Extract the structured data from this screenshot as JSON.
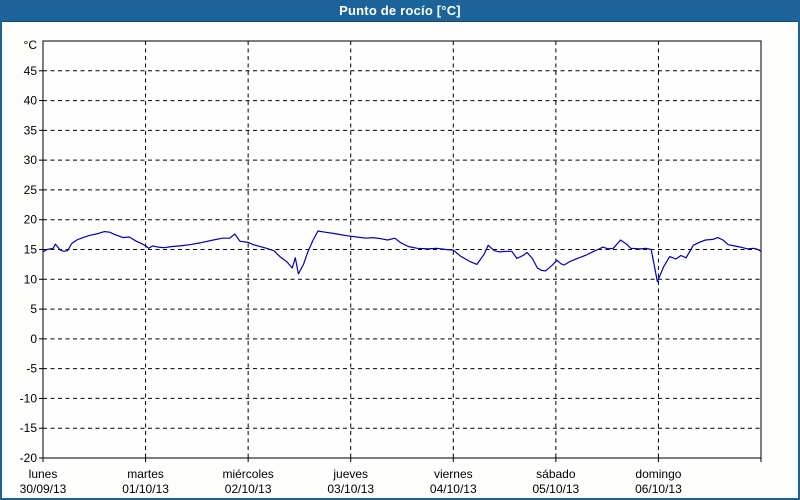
{
  "window": {
    "title": "Punto de rocío [°C]"
  },
  "colors": {
    "frame": "#1b6399",
    "titlebar_bg": "#1b6399",
    "title_text": "#ffffff",
    "plot_bg": "#fefefe",
    "axis": "#000000",
    "grid": "#000000",
    "tick_label": "#000000",
    "line": "#0000b8"
  },
  "chart_data": {
    "type": "line",
    "title": "Punto de rocío [°C]",
    "ylabel": "°C",
    "y_axis": {
      "min": -20,
      "max": 50,
      "tick_step": 5,
      "tick_min": -20,
      "tick_max": 45,
      "tick_labels": [
        "45",
        "40",
        "35",
        "30",
        "25",
        "20",
        "15",
        "10",
        "5",
        "0",
        "-5",
        "-10",
        "-15",
        "-20"
      ]
    },
    "x_axis": {
      "unit": "day",
      "range": [
        0,
        7
      ],
      "days": [
        {
          "name": "lunes",
          "date": "30/09/13"
        },
        {
          "name": "martes",
          "date": "01/10/13"
        },
        {
          "name": "miércoles",
          "date": "02/10/13"
        },
        {
          "name": "jueves",
          "date": "03/10/13"
        },
        {
          "name": "viernes",
          "date": "04/10/13"
        },
        {
          "name": "sábado",
          "date": "05/10/13"
        },
        {
          "name": "domingo",
          "date": "06/10/13"
        }
      ]
    },
    "grid": "dashed",
    "legend": "none",
    "series": [
      {
        "name": "Punto de rocío",
        "color": "#0000b8",
        "points": [
          [
            0,
            14.6
          ],
          [
            0.04,
            15
          ],
          [
            0.1,
            15.2
          ],
          [
            0.12,
            15.9
          ],
          [
            0.17,
            14.9
          ],
          [
            0.2,
            14.7
          ],
          [
            0.24,
            14.8
          ],
          [
            0.28,
            16
          ],
          [
            0.33,
            16.6
          ],
          [
            0.39,
            17
          ],
          [
            0.46,
            17.4
          ],
          [
            0.52,
            17.6
          ],
          [
            0.56,
            17.8
          ],
          [
            0.6,
            18
          ],
          [
            0.65,
            17.9
          ],
          [
            0.7,
            17.5
          ],
          [
            0.78,
            17
          ],
          [
            0.84,
            17.1
          ],
          [
            0.91,
            16.4
          ],
          [
            0.97,
            15.9
          ],
          [
            1,
            15.6
          ],
          [
            1.03,
            15.2
          ],
          [
            1.07,
            15.6
          ],
          [
            1.12,
            15.4
          ],
          [
            1.18,
            15.3
          ],
          [
            1.26,
            15.5
          ],
          [
            1.34,
            15.6
          ],
          [
            1.43,
            15.8
          ],
          [
            1.53,
            16.1
          ],
          [
            1.66,
            16.6
          ],
          [
            1.75,
            16.9
          ],
          [
            1.82,
            16.9
          ],
          [
            1.87,
            17.6
          ],
          [
            1.92,
            16.4
          ],
          [
            2,
            16.2
          ],
          [
            2.05,
            15.8
          ],
          [
            2.18,
            15.2
          ],
          [
            2.25,
            14.8
          ],
          [
            2.31,
            13.8
          ],
          [
            2.38,
            12.9
          ],
          [
            2.43,
            11.9
          ],
          [
            2.46,
            13.6
          ],
          [
            2.49,
            10.9
          ],
          [
            2.54,
            12.5
          ],
          [
            2.58,
            14.5
          ],
          [
            2.63,
            16.5
          ],
          [
            2.68,
            18.1
          ],
          [
            2.75,
            17.9
          ],
          [
            2.83,
            17.7
          ],
          [
            2.9,
            17.5
          ],
          [
            2.97,
            17.3
          ],
          [
            3.06,
            17.1
          ],
          [
            3.15,
            16.9
          ],
          [
            3.22,
            17
          ],
          [
            3.3,
            16.8
          ],
          [
            3.36,
            16.6
          ],
          [
            3.43,
            16.9
          ],
          [
            3.49,
            16.1
          ],
          [
            3.56,
            15.5
          ],
          [
            3.65,
            15.2
          ],
          [
            3.75,
            15.1
          ],
          [
            3.84,
            15.2
          ],
          [
            3.93,
            15
          ],
          [
            4,
            14.9
          ],
          [
            4.07,
            13.9
          ],
          [
            4.16,
            13
          ],
          [
            4.23,
            12.5
          ],
          [
            4.3,
            14.2
          ],
          [
            4.34,
            15.7
          ],
          [
            4.4,
            14.8
          ],
          [
            4.45,
            14.6
          ],
          [
            4.52,
            14.7
          ],
          [
            4.57,
            14.7
          ],
          [
            4.62,
            13.5
          ],
          [
            4.68,
            14
          ],
          [
            4.72,
            14.5
          ],
          [
            4.77,
            13.5
          ],
          [
            4.82,
            11.9
          ],
          [
            4.86,
            11.5
          ],
          [
            4.9,
            11.4
          ],
          [
            4.96,
            12.3
          ],
          [
            5.01,
            13.2
          ],
          [
            5.05,
            12.6
          ],
          [
            5.08,
            12.4
          ],
          [
            5.14,
            13
          ],
          [
            5.21,
            13.5
          ],
          [
            5.3,
            14.1
          ],
          [
            5.37,
            14.7
          ],
          [
            5.41,
            15
          ],
          [
            5.46,
            15.4
          ],
          [
            5.51,
            15.1
          ],
          [
            5.56,
            15.2
          ],
          [
            5.63,
            16.6
          ],
          [
            5.69,
            15.9
          ],
          [
            5.73,
            15.2
          ],
          [
            5.82,
            15.1
          ],
          [
            5.88,
            15.2
          ],
          [
            5.93,
            15
          ],
          [
            5.99,
            9.6
          ],
          [
            6.05,
            12.1
          ],
          [
            6.11,
            13.8
          ],
          [
            6.17,
            13.4
          ],
          [
            6.22,
            14
          ],
          [
            6.27,
            13.6
          ],
          [
            6.34,
            15.7
          ],
          [
            6.41,
            16.3
          ],
          [
            6.46,
            16.6
          ],
          [
            6.53,
            16.7
          ],
          [
            6.58,
            17
          ],
          [
            6.63,
            16.6
          ],
          [
            6.68,
            15.8
          ],
          [
            6.74,
            15.6
          ],
          [
            6.8,
            15.4
          ],
          [
            6.87,
            15.1
          ],
          [
            6.93,
            15.2
          ],
          [
            6.97,
            15
          ],
          [
            7,
            14.7
          ]
        ]
      }
    ]
  }
}
